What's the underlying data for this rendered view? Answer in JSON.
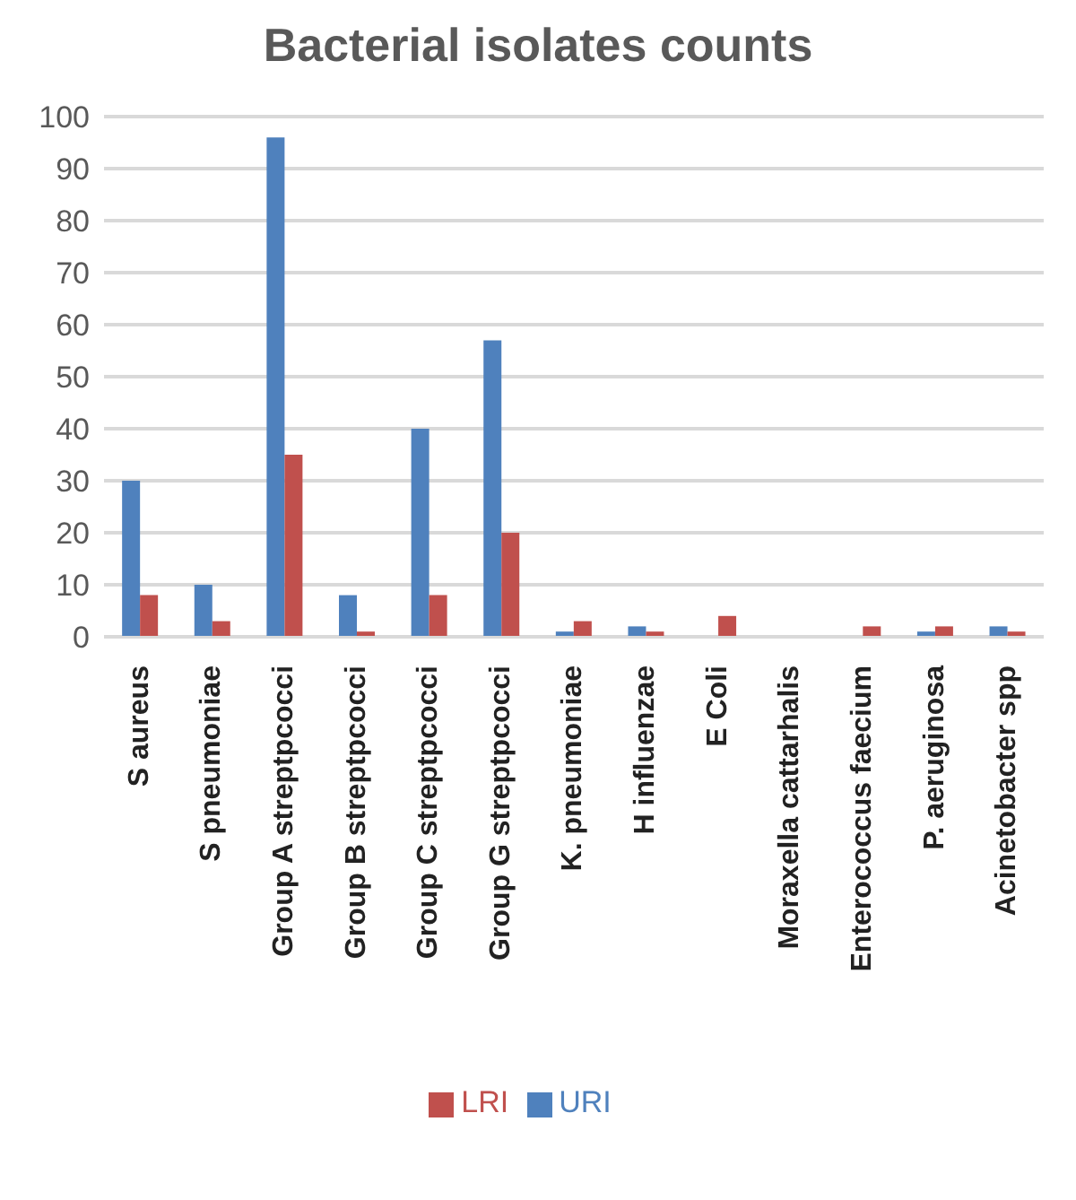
{
  "chart_data": {
    "type": "bar",
    "title": "Bacterial isolates counts",
    "categories": [
      "S aureus",
      "S pneumoniae",
      "Group A streptpcocci",
      "Group B streptpcocci",
      "Group C streptpcocci",
      "Group G streptpcocci",
      "K. pneumoniae",
      "H influenzae",
      "E Coli",
      "Moraxella cattarhalis",
      "Enterococcus faecium",
      "P. aeruginosa",
      "Acinetobacter spp"
    ],
    "series": [
      {
        "name": "URI",
        "color": "#4f81bd",
        "values": [
          30,
          10,
          96,
          8,
          40,
          57,
          1,
          2,
          0,
          0,
          0,
          1,
          2
        ]
      },
      {
        "name": "LRI",
        "color": "#c0504d",
        "values": [
          8,
          3,
          35,
          1,
          8,
          20,
          3,
          1,
          4,
          0,
          2,
          2,
          1
        ]
      }
    ],
    "ylim": [
      0,
      100
    ],
    "yticks": [
      0,
      10,
      20,
      30,
      40,
      50,
      60,
      70,
      80,
      90,
      100
    ],
    "grid": "y",
    "legend": "bottom"
  }
}
